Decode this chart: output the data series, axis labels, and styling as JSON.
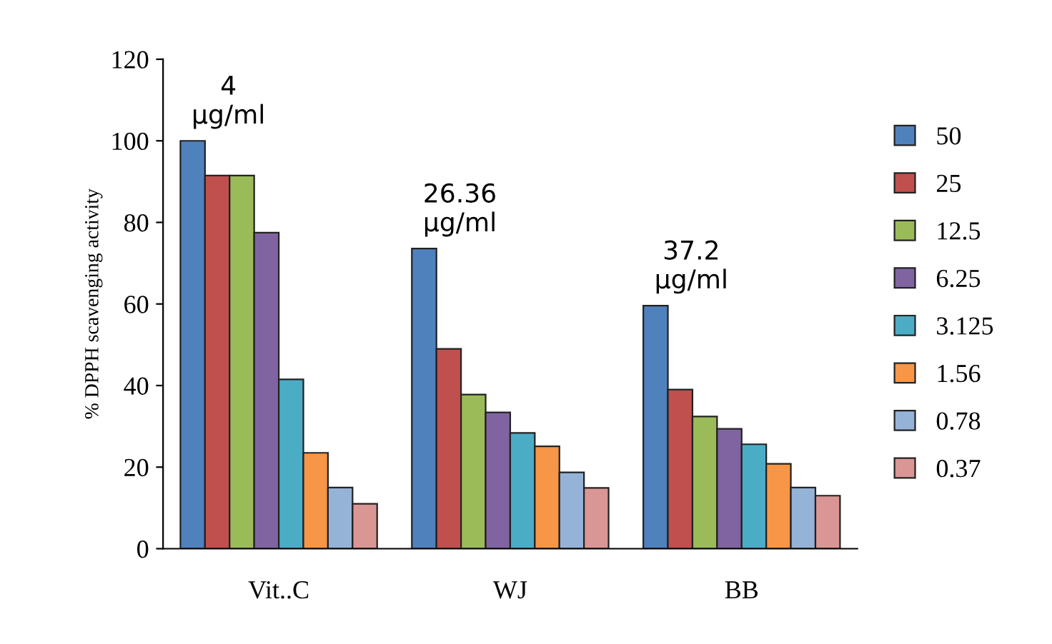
{
  "chart_data": {
    "type": "bar",
    "ylabel": "% DPPH scavenging activity",
    "categories": [
      "Vit..C",
      "WJ",
      "BB"
    ],
    "series": [
      {
        "name": "50",
        "color": "#4f81bd",
        "values": [
          100,
          73.6,
          59.6
        ]
      },
      {
        "name": "25",
        "color": "#c0504d",
        "values": [
          91.5,
          49,
          39
        ]
      },
      {
        "name": "12.5",
        "color": "#9bbb59",
        "values": [
          91.5,
          37.8,
          32.4
        ]
      },
      {
        "name": "6.25",
        "color": "#8064a2",
        "values": [
          77.5,
          33.4,
          29.4
        ]
      },
      {
        "name": "3.125",
        "color": "#4bacc6",
        "values": [
          41.5,
          28.4,
          25.6
        ]
      },
      {
        "name": "1.56",
        "color": "#f79646",
        "values": [
          23.5,
          25.1,
          20.8
        ]
      },
      {
        "name": "0.78",
        "color": "#95b3d7",
        "values": [
          15,
          18.7,
          15
        ]
      },
      {
        "name": "0.37",
        "color": "#d99694",
        "values": [
          11,
          14.9,
          13
        ]
      }
    ],
    "ylim": [
      0,
      120
    ],
    "yticks": [
      0,
      20,
      40,
      60,
      80,
      100,
      120
    ],
    "grid": false,
    "legend": "right",
    "annotations": [
      "4\nµg/ml",
      "26.36\nµg/ml",
      "37.2\nµg/ml"
    ]
  }
}
